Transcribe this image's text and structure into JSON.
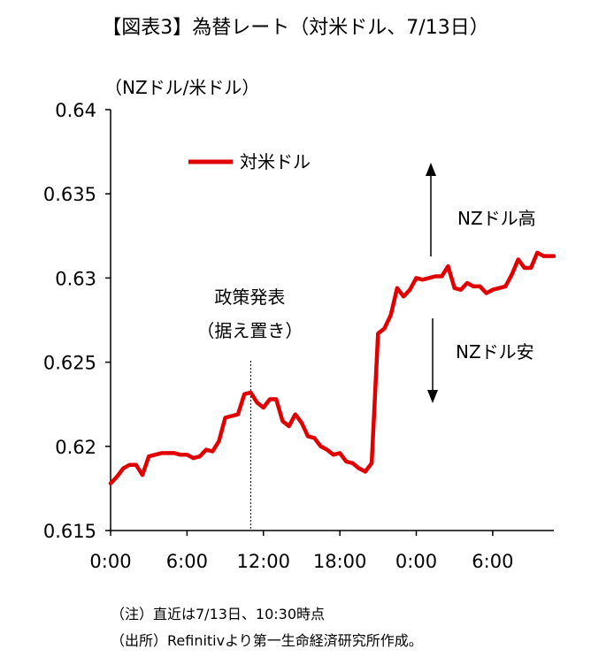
{
  "chart_data": {
    "type": "line",
    "title": "【図表3】為替レート（対米ドル、7/13日）",
    "ylabel": "（NZドル/米ドル）",
    "xlabel": "",
    "ylim": [
      0.615,
      0.64
    ],
    "y_ticks": [
      "0.64",
      "0.635",
      "0.63",
      "0.625",
      "0.62",
      "0.615"
    ],
    "x_ticks": [
      "0:00",
      "6:00",
      "12:00",
      "18:00",
      "0:00",
      "6:00"
    ],
    "grid": false,
    "legend_position": "top-left",
    "series": [
      {
        "name": "対米ドル",
        "color": "#e00000",
        "x": [
          0,
          0.5,
          1.0,
          1.5,
          2.0,
          2.5,
          3.0,
          3.5,
          4.0,
          4.5,
          5.0,
          5.5,
          6.0,
          6.5,
          7.0,
          7.5,
          8.0,
          8.5,
          9.0,
          9.5,
          10.0,
          10.5,
          11.0,
          11.5,
          12.0,
          12.5,
          13.0,
          13.5,
          14.0,
          14.5,
          15.0,
          15.5,
          16.0,
          16.5,
          17.0,
          17.5,
          18.0,
          18.5,
          19.0,
          19.5,
          20.0,
          20.5,
          21.0,
          21.5,
          22.0,
          22.5,
          23.0,
          23.5,
          24.0,
          24.5,
          25.0,
          25.5,
          26.0,
          26.5,
          27.0,
          27.5,
          28.0,
          28.5,
          29.0,
          29.5,
          30.0,
          30.5,
          31.0,
          31.5,
          32.0,
          32.5,
          33.0,
          33.5,
          34.0,
          34.5,
          34.8
        ],
        "values": [
          0.6178,
          0.6182,
          0.6187,
          0.6189,
          0.6189,
          0.6183,
          0.6194,
          0.6195,
          0.6196,
          0.6196,
          0.6196,
          0.6195,
          0.6195,
          0.6193,
          0.6194,
          0.6198,
          0.6197,
          0.6203,
          0.6217,
          0.6218,
          0.6219,
          0.6231,
          0.6232,
          0.6226,
          0.6223,
          0.6228,
          0.6228,
          0.6215,
          0.6212,
          0.6219,
          0.6214,
          0.6206,
          0.6205,
          0.62,
          0.6198,
          0.6195,
          0.6196,
          0.6191,
          0.619,
          0.6187,
          0.6185,
          0.619,
          0.6267,
          0.627,
          0.6278,
          0.6294,
          0.6289,
          0.6293,
          0.63,
          0.6299,
          0.63,
          0.6301,
          0.6301,
          0.6307,
          0.6294,
          0.6293,
          0.6297,
          0.6295,
          0.6295,
          0.6291,
          0.6293,
          0.6294,
          0.6295,
          0.6302,
          0.6311,
          0.6306,
          0.6306,
          0.6315,
          0.6313,
          0.6313,
          0.6313
        ]
      }
    ],
    "annotations": {
      "event_x": 11.0,
      "event_line1": "政策発表",
      "event_line2": "（据え置き）",
      "up_label": "NZドル高",
      "down_label": "NZドル安"
    }
  },
  "notes": {
    "line1": "（注）直近は7/13日、10:30時点",
    "line2": "（出所）Refinitivより第一生命経済研究所作成。"
  }
}
